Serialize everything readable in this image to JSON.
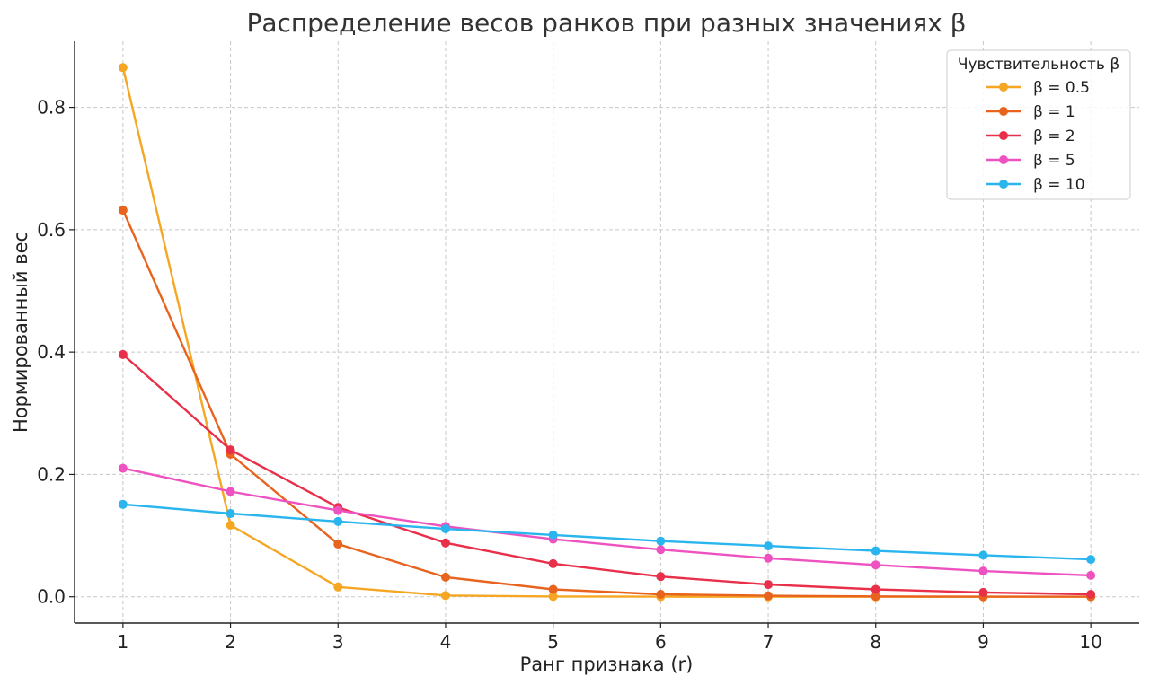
{
  "chart_data": {
    "type": "line",
    "title": "Распределение весов ранков при разных значениях β",
    "xlabel": "Ранг признака (r)",
    "ylabel": "Нормированный вес",
    "x": [
      1,
      2,
      3,
      4,
      5,
      6,
      7,
      8,
      9,
      10
    ],
    "x_ticks": [
      "1",
      "2",
      "3",
      "4",
      "5",
      "6",
      "7",
      "8",
      "9",
      "10"
    ],
    "y_ticks": [
      "0.0",
      "0.2",
      "0.4",
      "0.6",
      "0.8"
    ],
    "xlim": [
      0.55,
      10.45
    ],
    "ylim": [
      -0.043,
      0.908
    ],
    "grid": true,
    "legend": {
      "title": "Чувствительность β",
      "placement": "top-right"
    },
    "series": [
      {
        "name": "β = 0.5",
        "color": "#f5a623",
        "values": [
          0.865,
          0.117,
          0.016,
          0.002,
          0.0005,
          0.0001,
          0.0,
          0.0,
          0.0,
          0.0
        ]
      },
      {
        "name": "β = 1",
        "color": "#e8641e",
        "values": [
          0.632,
          0.233,
          0.086,
          0.032,
          0.012,
          0.004,
          0.0016,
          0.0006,
          0.0002,
          0.0001
        ]
      },
      {
        "name": "β = 2",
        "color": "#e8304a",
        "values": [
          0.396,
          0.24,
          0.146,
          0.088,
          0.054,
          0.033,
          0.02,
          0.012,
          0.007,
          0.004
        ]
      },
      {
        "name": "β = 5",
        "color": "#ee52c0",
        "values": [
          0.21,
          0.172,
          0.141,
          0.115,
          0.094,
          0.077,
          0.063,
          0.052,
          0.042,
          0.035
        ]
      },
      {
        "name": "β = 10",
        "color": "#2bb5ee",
        "values": [
          0.151,
          0.136,
          0.123,
          0.111,
          0.101,
          0.091,
          0.083,
          0.075,
          0.068,
          0.061
        ]
      }
    ]
  }
}
